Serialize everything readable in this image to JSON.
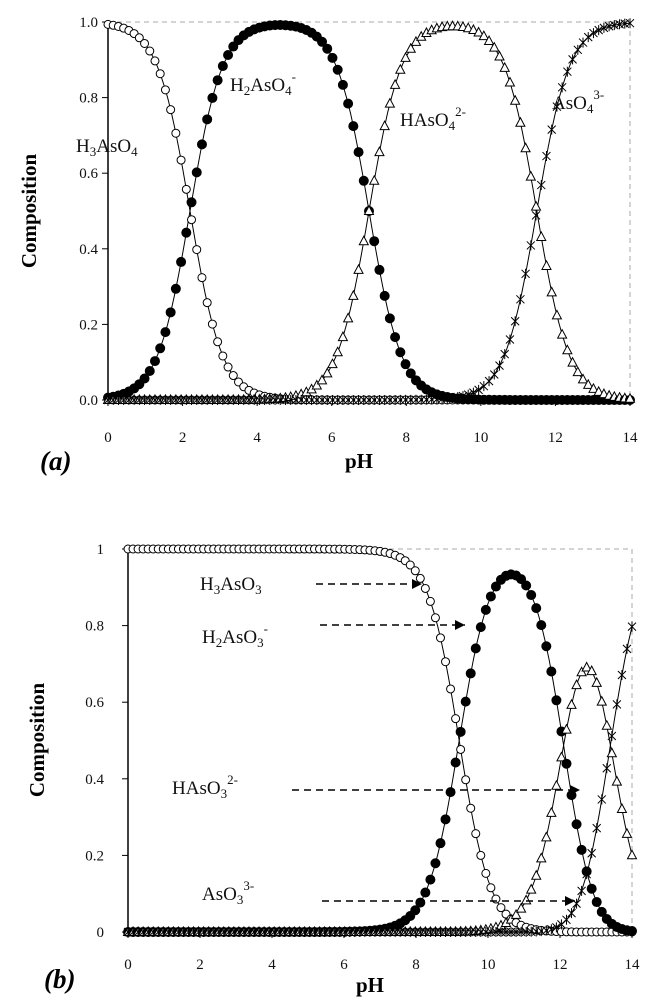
{
  "chart_data": [
    {
      "panel": "(a)",
      "type": "line",
      "xlabel": "pH",
      "ylabel": "Composition",
      "xlim": [
        0,
        14
      ],
      "ylim": [
        0,
        1
      ],
      "xticks": [
        "0",
        "2",
        "4",
        "6",
        "8",
        "10",
        "12",
        "14"
      ],
      "yticks": [
        "0.0",
        "0.2",
        "0.4",
        "0.6",
        "0.8",
        "1.0"
      ],
      "pKa": [
        2.2,
        7.0,
        11.5
      ],
      "species_labels": [
        "H3AsO4",
        "H2AsO4-",
        "HAsO42-",
        "AsO43-"
      ],
      "series": [
        {
          "label_base": "H",
          "label_sub": "3",
          "label_mid": "AsO",
          "label_sub2": "4",
          "label_sup": "",
          "marker": "open-circle"
        },
        {
          "label_base": "H",
          "label_sub": "2",
          "label_mid": "AsO",
          "label_sub2": "4",
          "label_sup": "-",
          "marker": "filled-circle"
        },
        {
          "label_base": "H",
          "label_sub": "",
          "label_mid": "AsO",
          "label_sub2": "4",
          "label_sup": "2-",
          "marker": "open-triangle"
        },
        {
          "label_base": "",
          "label_sub": "",
          "label_mid": "AsO",
          "label_sub2": "4",
          "label_sup": "3-",
          "marker": "cross"
        }
      ],
      "grid": false
    },
    {
      "panel": "(b)",
      "type": "line",
      "xlabel": "pH",
      "ylabel": "Composition",
      "xlim": [
        0,
        14
      ],
      "ylim": [
        0,
        1
      ],
      "xticks": [
        "0",
        "2",
        "4",
        "6",
        "8",
        "10",
        "12",
        "14"
      ],
      "yticks": [
        "0",
        "0.2",
        "0.4",
        "0.6",
        "0.8",
        "1"
      ],
      "pKa": [
        9.2,
        12.1,
        13.4
      ],
      "species_labels": [
        "H3AsO3",
        "H2AsO3-",
        "HAsO32-",
        "AsO33-"
      ],
      "series": [
        {
          "label_base": "H",
          "label_sub": "3",
          "label_mid": "AsO",
          "label_sub2": "3",
          "label_sup": "",
          "marker": "open-circle"
        },
        {
          "label_base": "H",
          "label_sub": "2",
          "label_mid": "AsO",
          "label_sub2": "3",
          "label_sup": "-",
          "marker": "filled-circle"
        },
        {
          "label_base": "H",
          "label_sub": "",
          "label_mid": "AsO",
          "label_sub2": "3",
          "label_sup": "2-",
          "marker": "open-triangle"
        },
        {
          "label_base": "",
          "label_sub": "",
          "label_mid": "AsO",
          "label_sub2": "3",
          "label_sup": "3-",
          "marker": "cross"
        }
      ],
      "grid": false
    }
  ]
}
